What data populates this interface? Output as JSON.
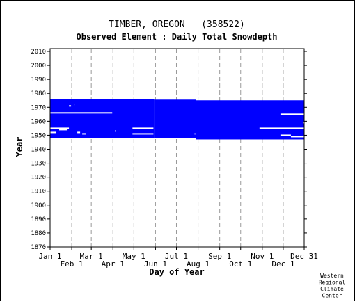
{
  "chart_data": {
    "type": "heatmap",
    "title": "TIMBER, OREGON   (358522)",
    "subtitle": "Observed Element : Daily Total Snowdepth",
    "xlabel": "Day of Year",
    "ylabel": "Year",
    "credit": [
      "Western",
      "Regional",
      "Climate",
      "Center"
    ],
    "colors": {
      "data": "#0000ff",
      "grid": "#9a9a9a",
      "axis": "#000000"
    },
    "x_range": [
      1,
      365
    ],
    "y_range": [
      1870,
      2012
    ],
    "y_ticks": [
      1870,
      1880,
      1890,
      1900,
      1910,
      1920,
      1930,
      1940,
      1950,
      1960,
      1970,
      1980,
      1990,
      2000,
      2010
    ],
    "x_ticks_top_row": [
      {
        "label": "Jan 1",
        "day": 1
      },
      {
        "label": "Mar 1",
        "day": 60
      },
      {
        "label": "May 1",
        "day": 121
      },
      {
        "label": "Jul 1",
        "day": 182
      },
      {
        "label": "Sep 1",
        "day": 244
      },
      {
        "label": "Nov 1",
        "day": 305
      },
      {
        "label": "Dec 31",
        "day": 365
      }
    ],
    "x_ticks_bottom_row": [
      {
        "label": "Feb 1",
        "day": 32
      },
      {
        "label": "Apr 1",
        "day": 91
      },
      {
        "label": "Jun 1",
        "day": 152
      },
      {
        "label": "Aug 1",
        "day": 213
      },
      {
        "label": "Oct 1",
        "day": 274
      },
      {
        "label": "Dec 1",
        "day": 335
      }
    ],
    "record_period": [
      {
        "day_start": 1,
        "day_end": 150,
        "year_start": 1948,
        "year_end": 1976
      },
      {
        "day_start": 150,
        "day_end": 210,
        "year_start": 1948,
        "year_end": 1975.5
      },
      {
        "day_start": 210,
        "day_end": 365,
        "year_start": 1947,
        "year_end": 1975
      }
    ],
    "missing_data": [
      {
        "day_start": 1,
        "day_end": 90,
        "year": 1966
      },
      {
        "day_start": 1,
        "day_end": 28,
        "year": 1955
      },
      {
        "day_start": 1,
        "day_end": 10,
        "year": 1952
      },
      {
        "day_start": 14,
        "day_end": 25,
        "year": 1954
      },
      {
        "day_start": 28,
        "day_end": 31,
        "year": 1971
      },
      {
        "day_start": 35,
        "day_end": 36,
        "year": 1972
      },
      {
        "day_start": 40,
        "day_end": 44,
        "year": 1952
      },
      {
        "day_start": 47,
        "day_end": 52,
        "year": 1951
      },
      {
        "day_start": 94,
        "day_end": 95,
        "year": 1953
      },
      {
        "day_start": 119,
        "day_end": 149,
        "year": 1955
      },
      {
        "day_start": 119,
        "day_end": 149,
        "year": 1951
      },
      {
        "day_start": 208,
        "day_end": 209,
        "year": 1951
      },
      {
        "day_start": 301,
        "day_end": 365,
        "year": 1955
      },
      {
        "day_start": 331,
        "day_end": 365,
        "year": 1965
      },
      {
        "day_start": 331,
        "day_end": 346,
        "year": 1950
      },
      {
        "day_start": 346,
        "day_end": 365,
        "year": 1949
      },
      {
        "day_start": 363,
        "day_end": 365,
        "year": 1959
      }
    ]
  }
}
